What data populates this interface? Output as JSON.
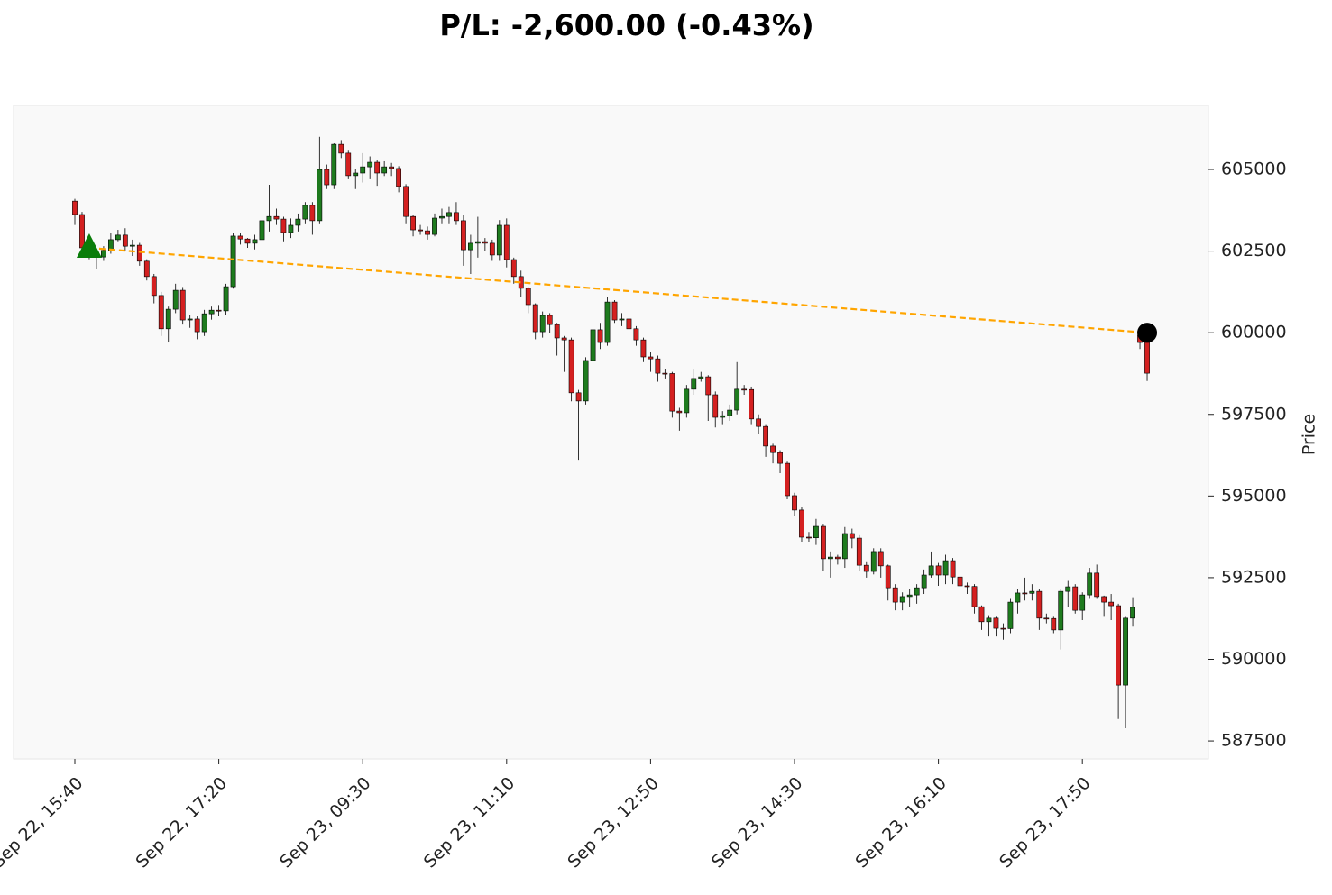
{
  "chart_data": {
    "type": "candlestick",
    "title": "P/L: -2,600.00 (-0.43%)",
    "y_label": "Price",
    "categories": [
      "Sep 22, 15:40",
      null,
      null,
      null,
      null,
      null,
      null,
      null,
      null,
      null,
      null,
      null,
      null,
      null,
      null,
      null,
      null,
      null,
      null,
      null,
      "Sep 22, 17:20",
      null,
      null,
      null,
      null,
      null,
      null,
      null,
      null,
      null,
      null,
      null,
      null,
      null,
      null,
      null,
      null,
      null,
      null,
      null,
      "Sep 23, 09:30",
      null,
      null,
      null,
      null,
      null,
      null,
      null,
      null,
      null,
      null,
      null,
      null,
      null,
      null,
      null,
      null,
      null,
      null,
      null,
      "Sep 23, 11:10",
      null,
      null,
      null,
      null,
      null,
      null,
      null,
      null,
      null,
      null,
      null,
      null,
      null,
      null,
      null,
      null,
      null,
      null,
      null,
      "Sep 23, 12:50",
      null,
      null,
      null,
      null,
      null,
      null,
      null,
      null,
      null,
      null,
      null,
      null,
      null,
      null,
      null,
      null,
      null,
      null,
      null,
      "Sep 23, 14:30",
      null,
      null,
      null,
      null,
      null,
      null,
      null,
      null,
      null,
      null,
      null,
      null,
      null,
      null,
      null,
      null,
      null,
      null,
      null,
      "Sep 23, 16:10",
      null,
      null,
      null,
      null,
      null,
      null,
      null,
      null,
      null,
      null,
      null,
      null,
      null,
      null,
      null,
      null,
      null,
      null,
      null,
      "Sep 23, 17:50",
      null,
      null,
      null,
      null,
      null,
      null,
      null,
      null,
      null
    ],
    "open": [
      604030,
      603620,
      602600,
      602460,
      602320,
      602520,
      602850,
      602990,
      602650,
      602680,
      602190,
      601720,
      601140,
      600120,
      600720,
      601300,
      600390,
      600420,
      600030,
      600580,
      600690,
      600670,
      601410,
      602960,
      602870,
      602740,
      602850,
      603430,
      603560,
      603480,
      603070,
      603290,
      603480,
      603900,
      603430,
      605000,
      604530,
      605770,
      605500,
      604810,
      604890,
      605080,
      605220,
      604890,
      605080,
      605030,
      604480,
      603560,
      603150,
      603120,
      603010,
      603510,
      603560,
      603680,
      603430,
      602540,
      602740,
      602790,
      602740,
      602380,
      603290,
      602240,
      601720,
      601360,
      600860,
      600030,
      600530,
      600250,
      599840,
      599780,
      598160,
      597910,
      599150,
      600090,
      599700,
      600940,
      600390,
      600420,
      600120,
      599780,
      599260,
      599200,
      598760,
      598750,
      597600,
      597550,
      598270,
      598600,
      598650,
      598100,
      597410,
      597460,
      597630,
      598270,
      598260,
      597360,
      597130,
      596530,
      596330,
      596000,
      595010,
      594570,
      593740,
      593720,
      594070,
      593080,
      593130,
      593080,
      593850,
      593710,
      592880,
      592690,
      593300,
      592860,
      592190,
      591750,
      591920,
      591970,
      592190,
      592580,
      592860,
      592580,
      593020,
      592520,
      592250,
      592230,
      591610,
      591150,
      591260,
      590950,
      590940,
      591750,
      592030,
      592020,
      592080,
      591260,
      591250,
      590900,
      592080,
      592220,
      591500,
      591970,
      592640,
      591920,
      591750,
      591640,
      589210,
      591260,
      599920,
      599700
    ],
    "high": [
      604100,
      603700,
      602700,
      602560,
      602650,
      603050,
      603150,
      603200,
      602850,
      602750,
      602250,
      601800,
      601250,
      600800,
      601500,
      601400,
      600550,
      600500,
      600700,
      600800,
      600850,
      601500,
      603050,
      603050,
      602900,
      603000,
      603550,
      604530,
      603800,
      603550,
      603500,
      603650,
      604000,
      604000,
      606000,
      605150,
      605800,
      605900,
      605600,
      605000,
      605500,
      605400,
      605300,
      605250,
      605200,
      605100,
      604550,
      603600,
      603300,
      603250,
      603650,
      603800,
      603850,
      604000,
      603600,
      603000,
      603550,
      602900,
      602850,
      603450,
      603500,
      602300,
      601900,
      601400,
      600900,
      600650,
      600600,
      600300,
      599900,
      599850,
      598250,
      599250,
      600600,
      600300,
      601100,
      601000,
      600600,
      600450,
      600200,
      599850,
      599400,
      599300,
      598900,
      598800,
      597700,
      598400,
      598900,
      598800,
      598700,
      598200,
      597600,
      597800,
      599100,
      598400,
      598350,
      597500,
      597200,
      596600,
      596400,
      596050,
      595100,
      594650,
      593900,
      594300,
      594150,
      593300,
      593200,
      594050,
      594000,
      593800,
      593000,
      593400,
      593400,
      592900,
      592300,
      592050,
      592150,
      592300,
      592750,
      593300,
      592950,
      593200,
      593100,
      592600,
      592350,
      592300,
      591650,
      591350,
      591300,
      591100,
      591850,
      592150,
      592500,
      592300,
      592150,
      591400,
      591300,
      592150,
      592400,
      592300,
      592050,
      592800,
      592900,
      591950,
      592000,
      591700,
      591300,
      591900,
      600000,
      599750
    ],
    "low": [
      603300,
      602400,
      602250,
      601960,
      602200,
      602420,
      602800,
      602500,
      602350,
      602050,
      601600,
      600900,
      599900,
      599700,
      600600,
      600250,
      600150,
      599800,
      599900,
      600400,
      600500,
      600550,
      601350,
      602700,
      602600,
      602550,
      602700,
      603100,
      603300,
      602800,
      602900,
      603100,
      603350,
      603000,
      603350,
      604400,
      604400,
      605350,
      604700,
      604400,
      604600,
      604700,
      604500,
      604800,
      604800,
      604300,
      603350,
      602950,
      603000,
      602850,
      602950,
      603350,
      603350,
      603300,
      602050,
      601800,
      602300,
      602500,
      602200,
      602200,
      602000,
      601500,
      601100,
      600600,
      599800,
      599850,
      600000,
      599300,
      598800,
      597900,
      596110,
      597800,
      599000,
      599500,
      599600,
      600300,
      600200,
      599800,
      599600,
      599100,
      598800,
      598500,
      598600,
      597400,
      597000,
      597400,
      598100,
      598500,
      597300,
      597100,
      597200,
      597300,
      597500,
      598100,
      597200,
      596900,
      596200,
      596000,
      595700,
      594900,
      594400,
      593600,
      593600,
      593500,
      592700,
      592500,
      592900,
      592800,
      593400,
      592700,
      592500,
      592600,
      592500,
      591800,
      591500,
      591500,
      591600,
      591700,
      592000,
      592500,
      592250,
      592300,
      592300,
      592050,
      592000,
      591400,
      590900,
      590700,
      590700,
      590600,
      590800,
      591400,
      591800,
      591800,
      590900,
      591100,
      590800,
      590300,
      591600,
      591400,
      591200,
      591850,
      591850,
      591300,
      591200,
      588170,
      587890,
      591000,
      599500,
      598520
    ],
    "close": [
      603620,
      602600,
      602460,
      602320,
      602520,
      602850,
      602990,
      602650,
      602680,
      602190,
      601720,
      601140,
      600120,
      600720,
      601300,
      600390,
      600420,
      600030,
      600580,
      600690,
      600670,
      601410,
      602960,
      602870,
      602740,
      602850,
      603430,
      603560,
      603480,
      603070,
      603290,
      603480,
      603900,
      603430,
      605000,
      604530,
      605770,
      605500,
      604810,
      604890,
      605080,
      605220,
      604890,
      605080,
      605030,
      604480,
      603560,
      603150,
      603120,
      603010,
      603510,
      603560,
      603680,
      603430,
      602540,
      602740,
      602790,
      602740,
      602380,
      603290,
      602240,
      601720,
      601360,
      600860,
      600030,
      600530,
      600250,
      599840,
      599780,
      598160,
      597910,
      599150,
      600090,
      599700,
      600940,
      600390,
      600420,
      600120,
      599780,
      599260,
      599200,
      598760,
      598750,
      597600,
      597550,
      598270,
      598600,
      598650,
      598100,
      597410,
      597460,
      597630,
      598270,
      598260,
      597360,
      597130,
      596530,
      596330,
      596000,
      595010,
      594570,
      593740,
      593720,
      594070,
      593080,
      593130,
      593080,
      593850,
      593710,
      592880,
      592690,
      593300,
      592860,
      592190,
      591750,
      591920,
      591970,
      592190,
      592580,
      592860,
      592580,
      593020,
      592520,
      592250,
      592230,
      591610,
      591150,
      591260,
      590950,
      590940,
      591750,
      592030,
      592020,
      592080,
      591260,
      591250,
      590900,
      592080,
      592220,
      591500,
      591970,
      592640,
      591920,
      591750,
      591640,
      589210,
      591260,
      591590,
      599700,
      598760
    ],
    "up_color": "#1e7b1e",
    "down_color": "#d42020",
    "entry": {
      "x": 2,
      "price": 602600,
      "color": "#0a7d0a"
    },
    "exit": {
      "x": 149,
      "price": 600000,
      "color": "#000000"
    },
    "trade_line_color": "#ffa500",
    "ylim": [
      586950,
      606960
    ],
    "yticks": [
      587500,
      590000,
      592500,
      595000,
      597500,
      600000,
      602500,
      605000
    ]
  }
}
